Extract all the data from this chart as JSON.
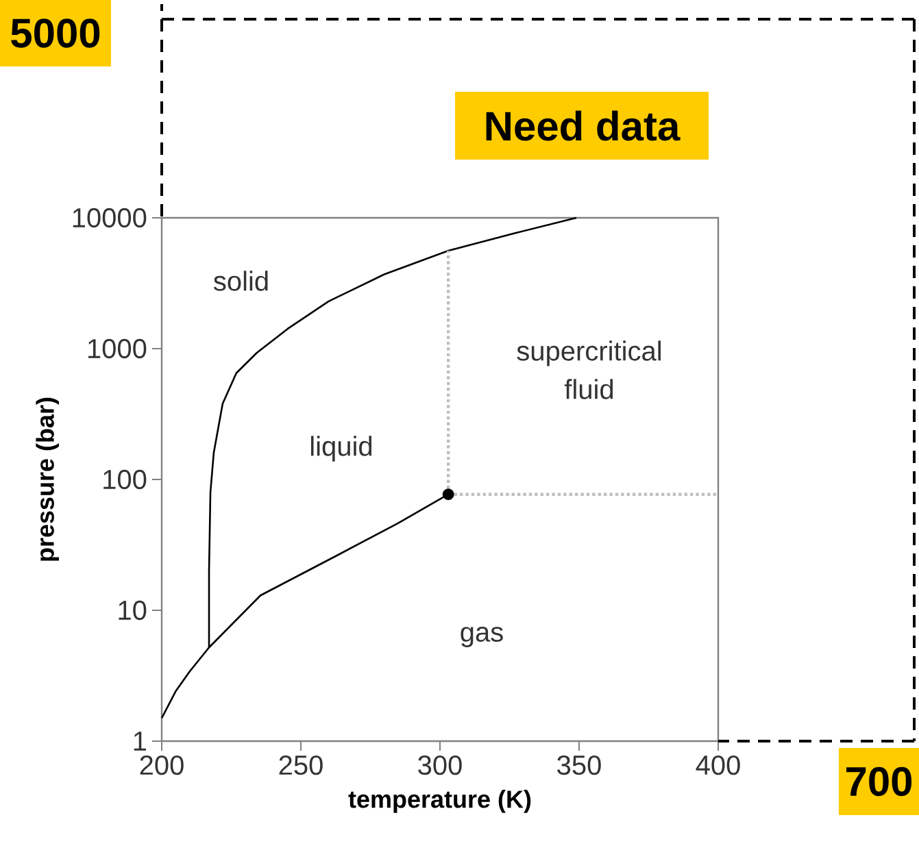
{
  "chart_data": {
    "type": "line",
    "xlabel": "temperature (K)",
    "ylabel": "pressure (bar)",
    "log": "y",
    "xlim": [
      200,
      400
    ],
    "ylim": [
      1,
      10000
    ],
    "xticks": [
      200,
      250,
      300,
      350,
      400
    ],
    "yticks": [
      1,
      10,
      100,
      1000,
      10000
    ],
    "marker": "none",
    "line_style": "solid",
    "series": [
      {
        "color": "#000000",
        "x": [
          200,
          205,
          210,
          217,
          235.5,
          262.6,
          284.7,
          303
        ],
        "values": [
          1.5,
          2.4,
          3.4,
          5.2,
          13,
          26,
          46,
          77
        ]
      },
      {
        "color": "#000000",
        "x": [
          217,
          217,
          217.5,
          218.7,
          221.9,
          226.8,
          234.2,
          245.3,
          260,
          280,
          303,
          326.6,
          349
        ],
        "values": [
          5.2,
          20,
          80,
          160,
          380,
          650,
          930,
          1420,
          2300,
          3700,
          5600,
          7600,
          10000
        ]
      },
      {
        "color": "#bfbfbf",
        "line_style": "dotted",
        "x": [
          303,
          303
        ],
        "values": [
          77,
          5600
        ]
      },
      {
        "color": "#bfbfbf",
        "line_style": "dotted",
        "x": [
          303,
          400
        ],
        "values": [
          77,
          77
        ]
      },
      {
        "type": "scatter",
        "marker": "circle",
        "color": "#000000",
        "x": [
          303
        ],
        "values": [
          77
        ]
      }
    ],
    "annotations": [
      "5000",
      "Need data",
      "700",
      "solid",
      "liquid",
      "supercritical fluid",
      "gas"
    ]
  }
}
